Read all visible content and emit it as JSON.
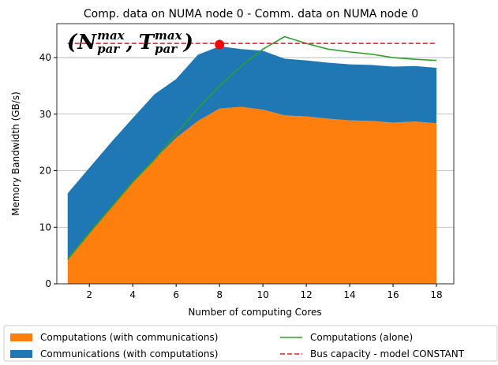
{
  "chart_data": {
    "type": "area_line",
    "title": "Comp. data on NUMA node 0 - Comm. data on NUMA node 0",
    "xlabel": "Number of computing Cores",
    "ylabel": "Memory Bandwidth (GB/s)",
    "x": [
      1,
      2,
      3,
      4,
      5,
      6,
      7,
      8,
      9,
      10,
      11,
      12,
      13,
      14,
      15,
      16,
      17,
      18
    ],
    "series": [
      {
        "name": "Computations (with communications)",
        "color": "#ff7f0e",
        "stack": true,
        "values": [
          4.5,
          9,
          13.5,
          18,
          22,
          25.8,
          28.8,
          31,
          31.3,
          30.8,
          29.8,
          29.6,
          29.2,
          28.9,
          28.8,
          28.5,
          28.7,
          28.4
        ]
      },
      {
        "name": "Communications (with computations)",
        "color": "#1f77b4",
        "stack": true,
        "values": [
          11.5,
          11.5,
          11.5,
          11.3,
          11.5,
          10.4,
          11.7,
          11,
          10.2,
          10.4,
          10,
          9.9,
          9.9,
          9.9,
          9.9,
          9.9,
          9.8,
          9.8
        ]
      },
      {
        "name": "Computations (alone)",
        "color": "#2ca02c",
        "stack": false,
        "dash": false,
        "values": [
          4.3,
          9,
          13.5,
          18,
          22,
          26.5,
          31,
          35,
          38.5,
          41.5,
          43.7,
          42.5,
          41.5,
          41,
          40.6,
          40,
          39.7,
          39.5
        ]
      },
      {
        "name": "Bus capacity - model CONSTANT",
        "color": "#d62728",
        "stack": false,
        "dash": true,
        "values": [
          42.5,
          42.5,
          42.5,
          42.5,
          42.5,
          42.5,
          42.5,
          42.5,
          42.5,
          42.5,
          42.5,
          42.5,
          42.5,
          42.5,
          42.5,
          42.5,
          42.5,
          42.5
        ]
      }
    ],
    "point": {
      "x": 8,
      "y": 42.3,
      "color": "#ff0000"
    },
    "annotation": {
      "open": "(",
      "first": "N",
      "sup": "max",
      "sub": "par",
      "sep": ",",
      "second": "T",
      "close": ")"
    },
    "xlim": [
      0.5,
      18.8
    ],
    "ylim": [
      0,
      46
    ],
    "xticks": [
      2,
      4,
      6,
      8,
      10,
      12,
      14,
      16,
      18
    ],
    "yticks": [
      0,
      10,
      20,
      30,
      40
    ],
    "grid": true
  }
}
